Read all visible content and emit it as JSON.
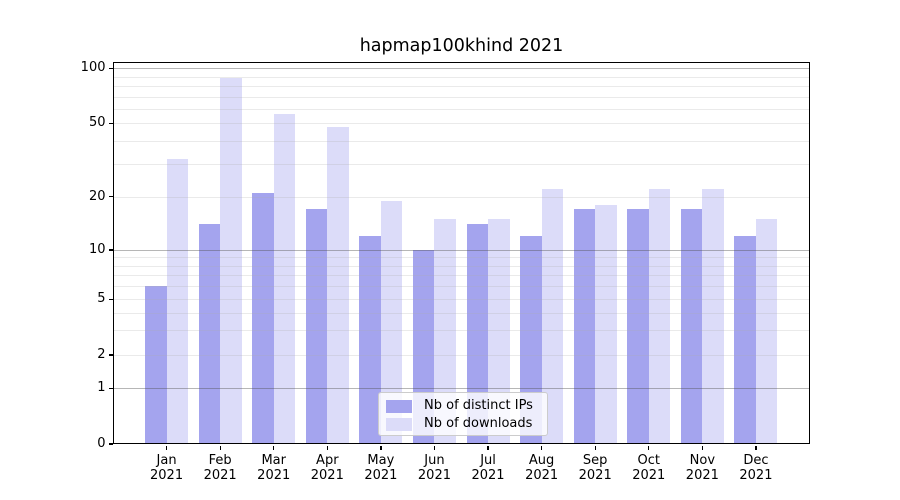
{
  "title": "hapmap100khind 2021",
  "legend": {
    "items": [
      {
        "label": "Nb of distinct IPs",
        "color": "#a4a4ee"
      },
      {
        "label": "Nb of downloads",
        "color": "#dcdcf9"
      }
    ]
  },
  "y_axis": {
    "tick_labels": [
      "0",
      "1",
      "2",
      "5",
      "10",
      "20",
      "50",
      "100"
    ]
  },
  "chart_data": {
    "type": "bar",
    "title": "hapmap100khind 2021",
    "categories": [
      "Jan 2021",
      "Feb 2021",
      "Mar 2021",
      "Apr 2021",
      "May 2021",
      "Jun 2021",
      "Jul 2021",
      "Aug 2021",
      "Sep 2021",
      "Oct 2021",
      "Nov 2021",
      "Dec 2021"
    ],
    "series": [
      {
        "name": "Nb of distinct IPs",
        "color": "#a4a4ee",
        "values": [
          6,
          14,
          21,
          17,
          12,
          10,
          14,
          12,
          17,
          17,
          17,
          12
        ]
      },
      {
        "name": "Nb of downloads",
        "color": "#dcdcf9",
        "values": [
          32,
          88,
          56,
          48,
          19,
          15,
          15,
          22,
          18,
          22,
          22,
          15
        ]
      }
    ],
    "y_ticks": [
      0,
      1,
      2,
      5,
      10,
      20,
      50,
      100
    ],
    "y_major_gridlines": [
      1,
      10,
      100
    ],
    "y_minor_gridlines": [
      2,
      3,
      4,
      5,
      6,
      7,
      8,
      9,
      20,
      30,
      40,
      50,
      60,
      70,
      80,
      90
    ],
    "yscale": "log-like (symlog with 0 baseline)",
    "ylim": [
      0,
      115
    ],
    "grid": true,
    "legend_position": "lower center",
    "xlabel": "",
    "ylabel": ""
  }
}
